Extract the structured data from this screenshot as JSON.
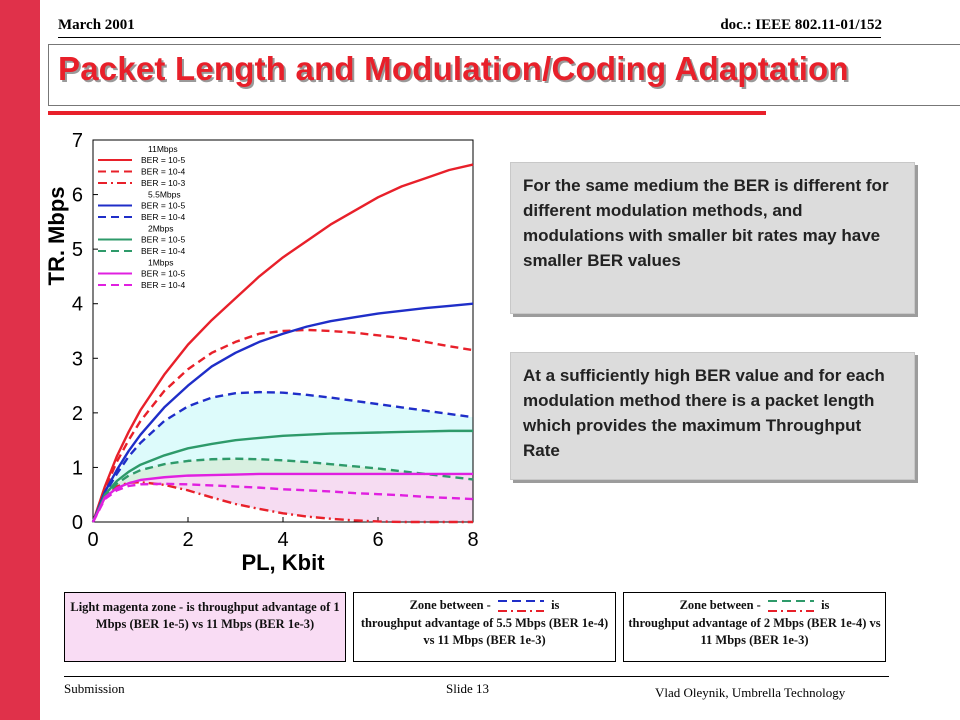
{
  "header": {
    "date": "March 2001",
    "doc": "doc.: IEEE 802.11-01/152"
  },
  "slide_title": "Packet Length and Modulation/Coding Adaptation",
  "notes": [
    "For the same medium the BER is different for different modulation methods, and modulations with smaller bit rates may have smaller BER values",
    "At a sufficiently high BER value and for each modulation method there is a packet length which provides the maximum Throughput Rate"
  ],
  "captions": {
    "magenta_zone": "Light magenta zone - is throughput advantage of 1 Mbps (BER 1e-5) vs 11 Mbps  (BER 1e-3)",
    "zone2_prefix": "Zone between -",
    "zone2_suffix": "is",
    "zone2_rest": "throughput advantage of 5.5 Mbps (BER 1e-4) vs 11 Mbps  (BER 1e-3)",
    "zone3_prefix": "Zone between -",
    "zone3_suffix": "is",
    "zone3_rest": "throughput advantage of 2 Mbps (BER 1e-4) vs 11 Mbps  (BER 1e-3)"
  },
  "footer": {
    "submission": "Submission",
    "slide": "Slide 13",
    "author": "Vlad Oleynik, Umbrella Technology"
  },
  "colors": {
    "r11": "#e8202a",
    "r55": "#1f2ec8",
    "r2": "#2e9a6a",
    "r1": "#e020e0",
    "cyan_zone": "#ddfbfb",
    "green_zone": "#d8f0e0",
    "magenta_zone": "#f6dcf2"
  },
  "chart_data": {
    "type": "line",
    "xlabel": "PL, Kbit",
    "ylabel": "TR. Mbps",
    "xlim": [
      0,
      8
    ],
    "ylim": [
      0,
      7
    ],
    "xticks": [
      "0",
      "2",
      "4",
      "6",
      "8"
    ],
    "yticks": [
      "0",
      "1",
      "2",
      "3",
      "4",
      "5",
      "6",
      "7"
    ],
    "grid": false,
    "legend_position": "top-left inside",
    "x": [
      0,
      0.25,
      0.5,
      0.75,
      1,
      1.5,
      2,
      2.5,
      3,
      3.5,
      4,
      4.5,
      5,
      5.5,
      6,
      6.5,
      7,
      7.5,
      8
    ],
    "legend_groups": [
      {
        "name": "11Mbps",
        "entries": [
          "BER = 10-5",
          "BER = 10-4",
          "BER = 10-3"
        ]
      },
      {
        "name": "5.5Mbps",
        "entries": [
          "BER = 10-5",
          "BER = 10-4"
        ]
      },
      {
        "name": "2Mbps",
        "entries": [
          "BER = 10-5",
          "BER = 10-4"
        ]
      },
      {
        "name": "1Mbps",
        "entries": [
          "BER = 10-5",
          "BER = 10-4"
        ]
      }
    ],
    "series": [
      {
        "name": "11Mbps BER = 10-5",
        "color": "#e8202a",
        "dash": "solid",
        "values": [
          0,
          0.65,
          1.2,
          1.65,
          2.05,
          2.7,
          3.25,
          3.7,
          4.1,
          4.5,
          4.85,
          5.15,
          5.45,
          5.7,
          5.95,
          6.15,
          6.3,
          6.45,
          6.55
        ]
      },
      {
        "name": "11Mbps BER = 10-4",
        "color": "#e8202a",
        "dash": "dashed",
        "values": [
          0,
          0.6,
          1.1,
          1.5,
          1.85,
          2.4,
          2.8,
          3.1,
          3.3,
          3.45,
          3.5,
          3.52,
          3.5,
          3.47,
          3.42,
          3.37,
          3.3,
          3.22,
          3.15
        ]
      },
      {
        "name": "11Mbps BER = 10-3",
        "color": "#e8202a",
        "dash": "dashdot",
        "values": [
          0,
          0.45,
          0.65,
          0.72,
          0.73,
          0.68,
          0.58,
          0.45,
          0.33,
          0.24,
          0.16,
          0.1,
          0.06,
          0.03,
          0.01,
          0,
          0,
          0,
          0
        ]
      },
      {
        "name": "5.5Mbps BER = 10-5",
        "color": "#1f2ec8",
        "dash": "solid",
        "values": [
          0,
          0.55,
          0.95,
          1.3,
          1.6,
          2.1,
          2.5,
          2.85,
          3.1,
          3.3,
          3.45,
          3.58,
          3.68,
          3.75,
          3.82,
          3.87,
          3.92,
          3.96,
          4.0
        ]
      },
      {
        "name": "5.5Mbps BER = 10-4",
        "color": "#1f2ec8",
        "dash": "dashed",
        "values": [
          0,
          0.52,
          0.88,
          1.2,
          1.45,
          1.85,
          2.12,
          2.28,
          2.36,
          2.38,
          2.37,
          2.33,
          2.28,
          2.22,
          2.16,
          2.1,
          2.04,
          1.98,
          1.92
        ]
      },
      {
        "name": "2Mbps BER = 10-5",
        "color": "#2e9a6a",
        "dash": "solid",
        "values": [
          0,
          0.5,
          0.75,
          0.92,
          1.05,
          1.22,
          1.35,
          1.43,
          1.5,
          1.54,
          1.58,
          1.6,
          1.62,
          1.63,
          1.64,
          1.65,
          1.66,
          1.67,
          1.67
        ]
      },
      {
        "name": "2Mbps BER = 10-4",
        "color": "#2e9a6a",
        "dash": "dashed",
        "values": [
          0,
          0.48,
          0.7,
          0.85,
          0.95,
          1.06,
          1.12,
          1.15,
          1.16,
          1.15,
          1.13,
          1.1,
          1.06,
          1.02,
          0.98,
          0.93,
          0.88,
          0.83,
          0.78
        ]
      },
      {
        "name": "1Mbps BER = 10-5",
        "color": "#e020e0",
        "dash": "solid",
        "values": [
          0,
          0.45,
          0.62,
          0.71,
          0.77,
          0.82,
          0.85,
          0.86,
          0.87,
          0.88,
          0.88,
          0.88,
          0.88,
          0.88,
          0.88,
          0.88,
          0.88,
          0.88,
          0.88
        ]
      },
      {
        "name": "1Mbps BER = 10-4",
        "color": "#e020e0",
        "dash": "dashed",
        "values": [
          0,
          0.42,
          0.58,
          0.66,
          0.69,
          0.7,
          0.69,
          0.67,
          0.65,
          0.63,
          0.6,
          0.58,
          0.56,
          0.53,
          0.51,
          0.49,
          0.46,
          0.44,
          0.42
        ]
      }
    ]
  }
}
